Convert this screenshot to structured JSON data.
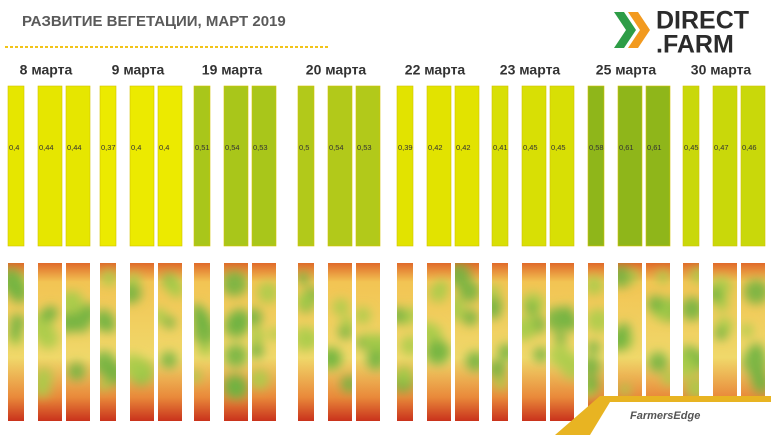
{
  "header": {
    "title": "РАЗВИТИЕ ВЕГЕТАЦИИ, МАРТ 2019"
  },
  "logo": {
    "line1": "DIRECT",
    "line2": ".FARM"
  },
  "columns": [
    {
      "date": "8 марта",
      "values": [
        "0,4",
        "0,44",
        "0,44"
      ]
    },
    {
      "date": "9 марта",
      "values": [
        "0,37",
        "0,4",
        "0,4"
      ]
    },
    {
      "date": "19 марта",
      "values": [
        "0,51",
        "0,54",
        "0,53"
      ]
    },
    {
      "date": "20 марта",
      "values": [
        "0,5",
        "0,54",
        "0,53"
      ]
    },
    {
      "date": "22 марта",
      "values": [
        "0,39",
        "0,42",
        "0,42"
      ]
    },
    {
      "date": "23 марта",
      "values": [
        "0,41",
        "0,45",
        "0,45"
      ]
    },
    {
      "date": "25 марта",
      "values": [
        "0,58",
        "0,61",
        "0,61"
      ]
    },
    {
      "date": "30 марта",
      "values": [
        "0,45",
        "0,47",
        "0,46"
      ]
    }
  ],
  "footer": {
    "brand": "FarmersEdge"
  }
}
